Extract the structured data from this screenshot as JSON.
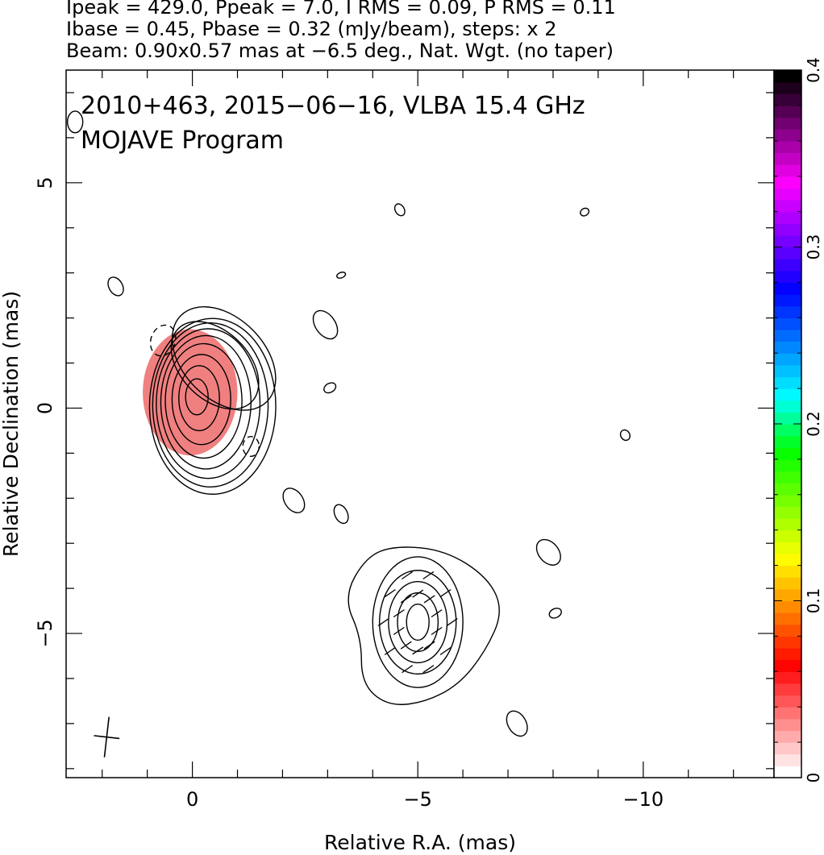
{
  "header": {
    "line1": "Ipeak = 429.0, Ppeak = 7.0, I RMS = 0.09, P RMS = 0.11",
    "line2": "Ibase = 0.45, Pbase = 0.32 (mJy/beam), steps: x 2",
    "line3": "Beam: 0.90x0.57 mas at −6.5 deg., Nat. Wgt. (no taper)"
  },
  "plot_title": {
    "source_line": "2010+463, 2015−06−16, VLBA 15.4 GHz",
    "program_line": "MOJAVE Program"
  },
  "chart_data": {
    "type": "heatmap",
    "xlabel": "Relative R.A. (mas)",
    "ylabel": "Relative Declination (mas)",
    "xlim": [
      2.8,
      -12.9
    ],
    "ylim": [
      -8.2,
      7.5
    ],
    "x_ticks": [
      0,
      -5,
      -10
    ],
    "x_tick_labels": [
      "0",
      "−5",
      "−10"
    ],
    "y_ticks": [
      5,
      0,
      -5
    ],
    "y_tick_labels": [
      "5",
      "0",
      "−5"
    ],
    "x_minor_step": 1,
    "y_minor_step": 1,
    "colorbar": {
      "range": [
        0,
        0.4
      ],
      "ticks": [
        0,
        0.1,
        0.2,
        0.3,
        0.4
      ],
      "tick_labels": [
        "0",
        "0.1",
        "0.2",
        "0.3",
        "0.4"
      ],
      "colors": [
        "#ffffff",
        "#ff8080",
        "#ff0000",
        "#ff8000",
        "#ffff00",
        "#80ff00",
        "#00ff00",
        "#00ffff",
        "#0080ff",
        "#0000ff",
        "#8000ff",
        "#ff00ff",
        "#800080",
        "#000000"
      ]
    },
    "core": {
      "center": [
        -0.1,
        0.25
      ],
      "color_patch_color": "#f08080",
      "contours": [
        [
          0.25,
          0.4,
          0
        ],
        [
          0.45,
          0.72,
          0
        ],
        [
          0.65,
          1.0,
          0
        ],
        [
          0.85,
          1.27,
          0
        ],
        [
          1.0,
          1.48,
          0
        ],
        [
          1.15,
          1.66,
          0
        ],
        [
          1.28,
          1.82,
          0
        ],
        [
          1.4,
          1.95,
          0
        ]
      ]
    },
    "core_extension_contours": [
      [
        -0.5,
        0.95,
        1.15,
        0.75,
        45
      ],
      [
        -0.7,
        1.1,
        1.35,
        0.9,
        45
      ]
    ],
    "jet_component": {
      "center": [
        -5.0,
        -4.75
      ],
      "inner_contours": [
        [
          0.25,
          0.4,
          0
        ],
        [
          0.45,
          0.65,
          0
        ],
        [
          0.65,
          0.9,
          0
        ],
        [
          0.85,
          1.15,
          0
        ],
        [
          1.0,
          1.45,
          0
        ]
      ],
      "outer_contour": [
        [
          -3.85,
          -3.3
        ],
        [
          -4.5,
          -3.05
        ],
        [
          -5.6,
          -3.15
        ],
        [
          -6.55,
          -3.75
        ],
        [
          -6.9,
          -4.5
        ],
        [
          -6.5,
          -5.4
        ],
        [
          -5.9,
          -6.15
        ],
        [
          -5.1,
          -6.55
        ],
        [
          -4.3,
          -6.6
        ],
        [
          -3.75,
          -6.1
        ],
        [
          -3.75,
          -5.1
        ],
        [
          -3.35,
          -4.2
        ]
      ],
      "polarization_vector_count": 20
    },
    "isolated_contours": [
      [
        2.6,
        6.35,
        0.17,
        0.24,
        0
      ],
      [
        1.7,
        2.7,
        0.15,
        0.22,
        -30
      ],
      [
        -3.3,
        2.95,
        0.1,
        0.06,
        -20
      ],
      [
        -4.6,
        4.4,
        0.1,
        0.14,
        -30
      ],
      [
        -8.7,
        4.35,
        0.1,
        0.08,
        -30
      ],
      [
        -2.95,
        1.85,
        0.22,
        0.35,
        -35
      ],
      [
        -3.05,
        0.45,
        0.14,
        0.1,
        -30
      ],
      [
        -9.6,
        -0.6,
        0.1,
        0.12,
        -30
      ],
      [
        -2.25,
        -2.05,
        0.2,
        0.3,
        -35
      ],
      [
        -3.3,
        -2.35,
        0.14,
        0.22,
        -25
      ],
      [
        -7.9,
        -3.2,
        0.22,
        0.32,
        -40
      ],
      [
        -8.05,
        -4.55,
        0.14,
        0.1,
        -25
      ],
      [
        -7.2,
        -7.0,
        0.2,
        0.3,
        -30
      ]
    ],
    "negative_contours": [
      [
        0.65,
        1.5,
        0.27,
        0.35,
        20
      ],
      [
        -1.3,
        -0.85,
        0.18,
        0.22,
        0
      ]
    ],
    "beam": {
      "position": [
        1.9,
        -7.3
      ],
      "major": 0.9,
      "minor": 0.57,
      "pa_deg": -6.5
    }
  }
}
